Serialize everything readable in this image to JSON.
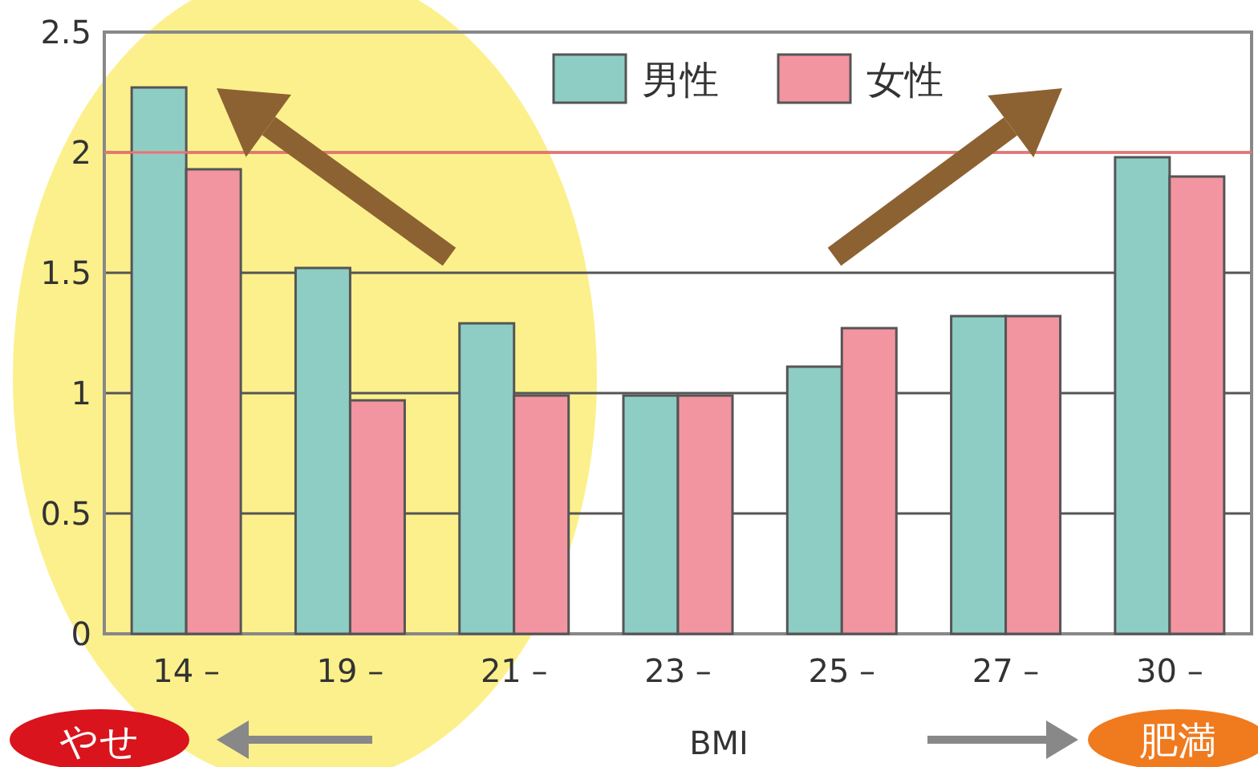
{
  "chart_data": {
    "type": "bar",
    "categories": [
      "14 –",
      "19 –",
      "21 –",
      "23 –",
      "25 –",
      "27 –",
      "30 –"
    ],
    "series": [
      {
        "name": "男性",
        "color": "#8ecdc4",
        "values": [
          2.27,
          1.52,
          1.29,
          0.99,
          1.11,
          1.32,
          1.98
        ]
      },
      {
        "name": "女性",
        "color": "#f295a0",
        "values": [
          1.93,
          0.97,
          0.99,
          0.99,
          1.27,
          1.32,
          1.9
        ]
      }
    ],
    "xlabel": "BMI",
    "ylim": [
      0,
      2.5
    ],
    "yticks": [
      0,
      0.5,
      1,
      1.5,
      2,
      2.5
    ],
    "grid": "y",
    "legend": "top",
    "ref_lines": [
      {
        "axis": "y",
        "value": 2,
        "color": "#f07070"
      }
    ],
    "annotations": [
      "やせ",
      "肥満"
    ]
  }
}
